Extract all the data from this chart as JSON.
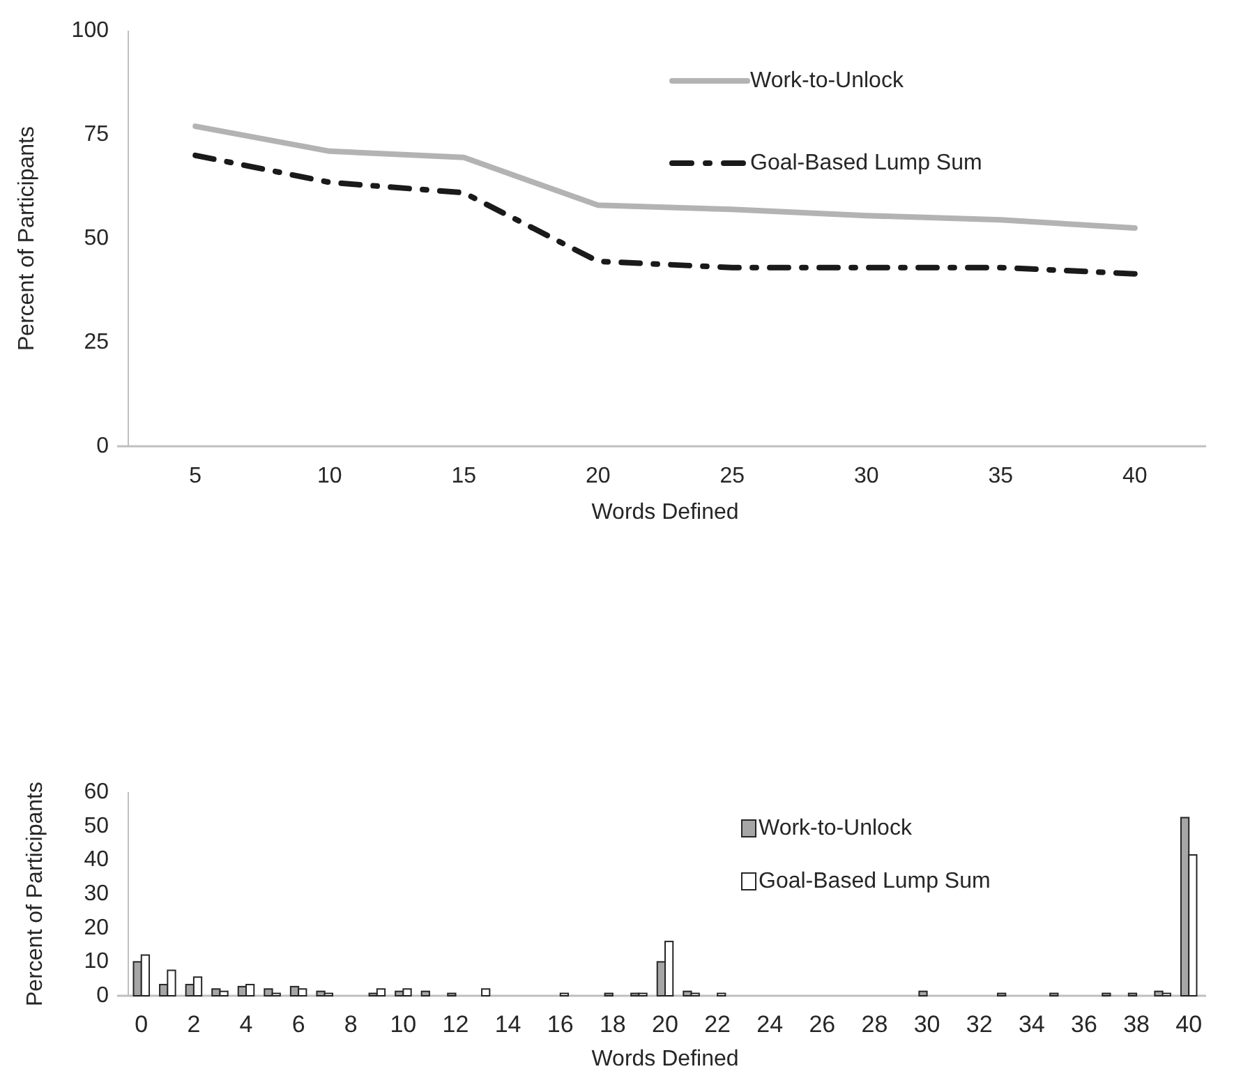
{
  "chart_data": [
    {
      "type": "line",
      "xlabel": "Words Defined",
      "ylabel": "Percent of Participants",
      "categories": [
        "5",
        "10",
        "15",
        "20",
        "25",
        "30",
        "35",
        "40"
      ],
      "ylim": [
        0,
        100
      ],
      "yticks": [
        0,
        25,
        50,
        75,
        100
      ],
      "legend": "top right",
      "grid": false,
      "series": [
        {
          "name": "Work-to-Unlock",
          "color": "#b3b3b3",
          "line_style": "solid",
          "values": [
            77,
            71,
            69.5,
            58,
            57,
            55.5,
            54.5,
            52.5
          ]
        },
        {
          "name": "Goal-Based Lump Sum",
          "color": "#1a1a1a",
          "line_style": "dashed",
          "values": [
            70,
            63.5,
            61,
            44.5,
            43,
            43,
            43,
            41.5
          ]
        }
      ]
    },
    {
      "type": "bar",
      "xlabel": "Words Defined",
      "ylabel": "Percent of Participants",
      "x": [
        0,
        1,
        2,
        3,
        4,
        5,
        6,
        7,
        8,
        9,
        10,
        11,
        12,
        13,
        14,
        15,
        16,
        17,
        18,
        19,
        20,
        21,
        22,
        23,
        24,
        25,
        26,
        27,
        28,
        29,
        30,
        31,
        32,
        33,
        34,
        35,
        36,
        37,
        38,
        39,
        40
      ],
      "xlim": [
        -0.5,
        40.5
      ],
      "xticks": [
        0,
        2,
        4,
        6,
        8,
        10,
        12,
        14,
        16,
        18,
        20,
        22,
        24,
        26,
        28,
        30,
        32,
        34,
        36,
        38,
        40
      ],
      "ylim": [
        0,
        60
      ],
      "yticks": [
        0,
        10,
        20,
        30,
        40,
        50,
        60
      ],
      "legend": "top right",
      "grid": false,
      "series": [
        {
          "name": "Work-to-Unlock",
          "color": "#a6a6a6",
          "values": [
            10,
            3.3,
            3.3,
            2,
            2.7,
            2,
            2.7,
            1.3,
            0,
            0.7,
            1.3,
            1.3,
            0.7,
            0,
            0,
            0,
            0,
            0,
            0.7,
            0.7,
            10,
            1.3,
            0,
            0,
            0,
            0,
            0,
            0,
            0,
            0,
            1.3,
            0,
            0,
            0.7,
            0,
            0.7,
            0,
            0.7,
            0.7,
            1.3,
            52.5
          ]
        },
        {
          "name": "Goal-Based Lump Sum",
          "color": "#ffffff",
          "values": [
            12,
            7.5,
            5.5,
            1.3,
            3.3,
            0.7,
            2,
            0.7,
            0,
            2,
            2,
            0,
            0,
            2,
            0,
            0,
            0.7,
            0,
            0,
            0.7,
            16,
            0.7,
            0.7,
            0,
            0,
            0,
            0,
            0,
            0,
            0,
            0,
            0,
            0,
            0,
            0,
            0,
            0,
            0,
            0,
            0.7,
            41.5
          ]
        }
      ]
    }
  ]
}
